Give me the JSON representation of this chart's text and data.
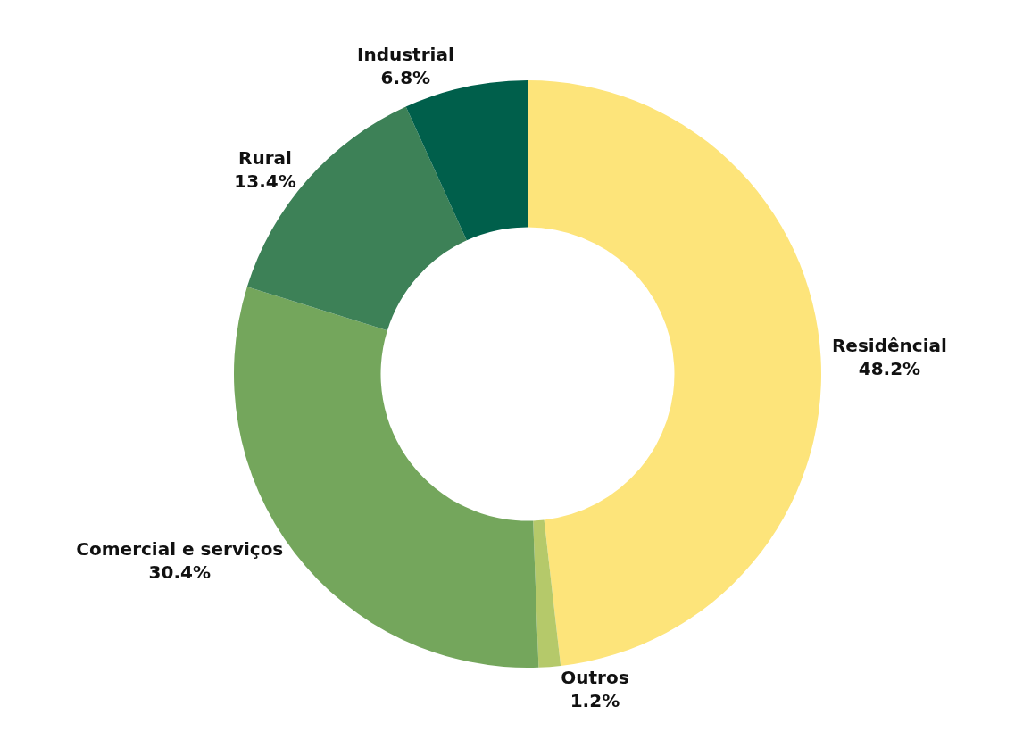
{
  "chart_data": {
    "type": "donut",
    "categories": [
      "Residêncial",
      "Outros",
      "Comercial e serviços",
      "Rural",
      "Industrial"
    ],
    "values": [
      48.2,
      1.2,
      30.4,
      13.4,
      6.8
    ],
    "value_labels": [
      "48.2%",
      "1.2%",
      "30.4%",
      "13.4%",
      "6.8%"
    ],
    "colors": [
      "#fde47a",
      "#b5c96a",
      "#74a65c",
      "#3d8157",
      "#005f4b"
    ],
    "legend": false
  }
}
